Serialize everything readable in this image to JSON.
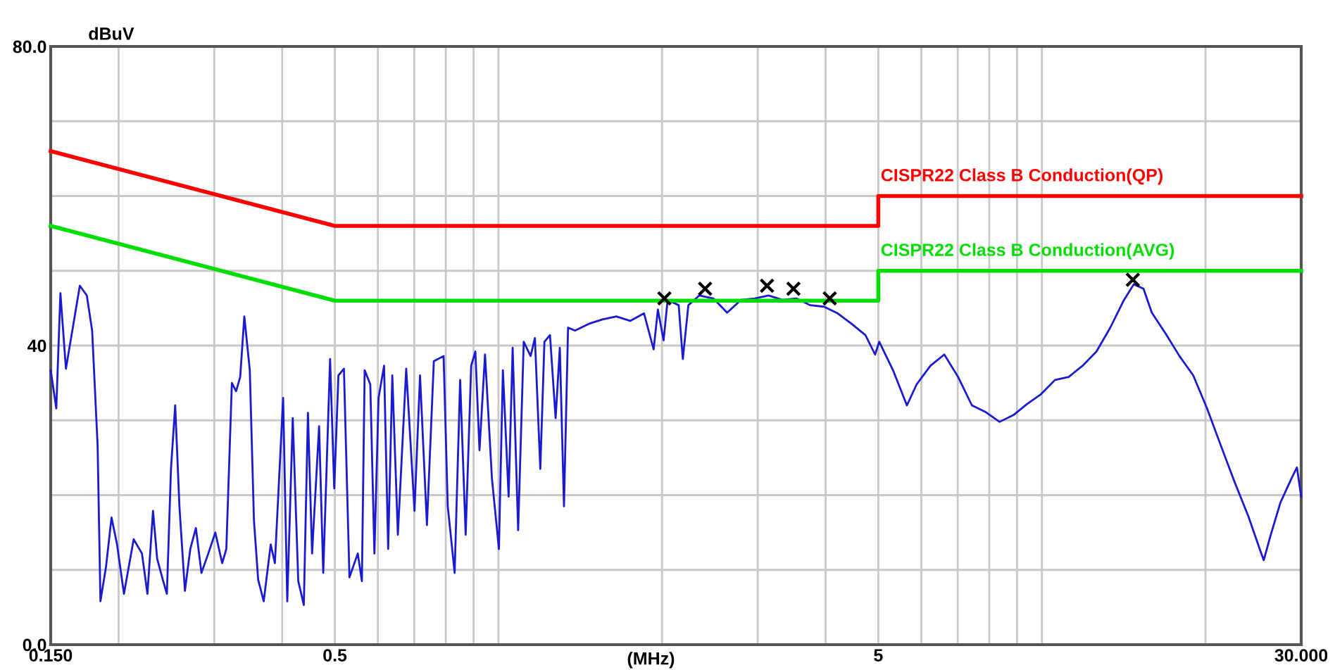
{
  "chart_data": {
    "type": "line",
    "xlabel": "(MHz)",
    "ylabel": "dBuV",
    "log": "x",
    "grid": true,
    "xlim": [
      0.15,
      30
    ],
    "ylim": [
      0,
      80
    ],
    "xticks": [
      {
        "value": 0.15,
        "label": "0.150"
      },
      {
        "value": 0.2,
        "label": null
      },
      {
        "value": 0.3,
        "label": null
      },
      {
        "value": 0.4,
        "label": null
      },
      0.5,
      {
        "value": 0.6,
        "label": null
      },
      {
        "value": 0.7,
        "label": null
      },
      {
        "value": 0.8,
        "label": null
      },
      {
        "value": 0.9,
        "label": null
      },
      {
        "value": 1,
        "label": null
      },
      {
        "value": 2,
        "label": null
      },
      {
        "value": 3,
        "label": null
      },
      {
        "value": 4,
        "label": null
      },
      5,
      {
        "value": 6,
        "label": null
      },
      {
        "value": 7,
        "label": null
      },
      {
        "value": 8,
        "label": null
      },
      {
        "value": 9,
        "label": null
      },
      {
        "value": 10,
        "label": null
      },
      {
        "value": 20,
        "label": null
      },
      {
        "value": 30,
        "label": "30.000"
      }
    ],
    "yticks": [
      {
        "value": 0,
        "label": "0.0"
      },
      {
        "value": 10,
        "label": null
      },
      {
        "value": 20,
        "label": null
      },
      {
        "value": 30,
        "label": null
      },
      40,
      {
        "value": 50,
        "label": null
      },
      {
        "value": 60,
        "label": null
      },
      {
        "value": 70,
        "label": null
      },
      {
        "value": 80,
        "label": "80.0"
      }
    ],
    "series": [
      {
        "color": "#1a1ad0",
        "x": [
          0.15,
          0.1536,
          0.1563,
          0.16,
          0.1697,
          0.1748,
          0.1788,
          0.183,
          0.1852,
          0.1896,
          0.1941,
          0.1987,
          0.2046,
          0.2132,
          0.2208,
          0.226,
          0.2314,
          0.2355,
          0.2412,
          0.2454,
          0.2497,
          0.2542,
          0.2588,
          0.2649,
          0.271,
          0.2775,
          0.2841,
          0.2925,
          0.3013,
          0.3102,
          0.3157,
          0.3232,
          0.329,
          0.3348,
          0.3407,
          0.3487,
          0.3549,
          0.3613,
          0.3699,
          0.381,
          0.3878,
          0.3945,
          0.4016,
          0.4087,
          0.4183,
          0.4282,
          0.4384,
          0.4461,
          0.454,
          0.4677,
          0.476,
          0.49,
          0.4987,
          0.5076,
          0.5196,
          0.5319,
          0.551,
          0.5607,
          0.5673,
          0.581,
          0.5912,
          0.6017,
          0.6159,
          0.6267,
          0.6378,
          0.653,
          0.6765,
          0.7007,
          0.7173,
          0.7386,
          0.7605,
          0.7926,
          0.8067,
          0.8306,
          0.8502,
          0.8703,
          0.8909,
          0.9068,
          0.9228,
          0.9447,
          0.9728,
          1.002,
          1.019,
          1.044,
          1.062,
          1.087,
          1.113,
          1.146,
          1.167,
          1.194,
          1.215,
          1.244,
          1.274,
          1.297,
          1.32,
          1.343,
          1.383,
          1.466,
          1.554,
          1.648,
          1.747,
          1.853,
          1.93,
          1.965,
          2.013,
          2.048,
          2.146,
          2.184,
          2.236,
          2.343,
          2.485,
          2.635,
          2.794,
          2.962,
          3.141,
          3.331,
          3.532,
          3.745,
          3.971,
          4.211,
          4.465,
          4.734,
          4.932,
          5.02,
          5.322,
          5.644,
          5.881,
          6.236,
          6.613,
          7.011,
          7.434,
          7.882,
          8.358,
          8.862,
          9.397,
          9.964,
          10.57,
          11.2,
          11.88,
          12.6,
          13.36,
          14.16,
          14.76,
          15.38,
          15.93,
          16.89,
          17.91,
          18.99,
          20.13,
          21.35,
          22.64,
          24.0,
          25.16,
          25.6,
          26.37,
          27.47,
          28.78,
          29.46,
          30.0
        ],
        "values": [
          36.7,
          31.6,
          47,
          36.9,
          48,
          46.7,
          42,
          26.6,
          5.8,
          10.4,
          17,
          13.4,
          6.8,
          14.1,
          12.2,
          6.8,
          17.9,
          11.5,
          8.7,
          6.8,
          23.5,
          32,
          18.5,
          7.2,
          12.8,
          15.6,
          9.6,
          12.2,
          15,
          10.9,
          12.8,
          35,
          33.9,
          35.8,
          43.9,
          36.7,
          16.6,
          8.7,
          5.8,
          13.4,
          10.9,
          21.7,
          33,
          5.8,
          30.3,
          8.5,
          5.3,
          31,
          12.2,
          29.2,
          9.6,
          38.2,
          20.9,
          36,
          36.9,
          9,
          12.2,
          8.5,
          36.7,
          34.8,
          12.2,
          33,
          37.3,
          12.8,
          36,
          14.7,
          36.9,
          17.9,
          36,
          16,
          37.9,
          38.6,
          18.5,
          9.6,
          35.4,
          14.7,
          37.3,
          39.2,
          26,
          38.8,
          22.2,
          12.8,
          36.7,
          19.8,
          39.7,
          15.3,
          40.5,
          38.6,
          41,
          23.5,
          40.5,
          41.4,
          30.3,
          39.7,
          18.5,
          42.4,
          42,
          42.9,
          43.5,
          43.9,
          43.3,
          44.3,
          39.5,
          44.8,
          40.7,
          46.1,
          45.4,
          38.2,
          45.4,
          46.7,
          46.3,
          44.4,
          46.1,
          46.3,
          46.7,
          46.1,
          46.3,
          45.4,
          45.2,
          44.3,
          42.9,
          41.4,
          38.8,
          40.5,
          36.7,
          32,
          34.8,
          37.3,
          38.8,
          35.8,
          32,
          31.1,
          29.8,
          30.7,
          32.2,
          33.5,
          35.4,
          35.8,
          37.3,
          39.2,
          42.4,
          46.1,
          48.2,
          47.6,
          44.4,
          41.6,
          38.6,
          36,
          31.6,
          26.6,
          21.7,
          17.1,
          12.8,
          11.3,
          14.7,
          19,
          22.2,
          23.7,
          19.8
        ]
      },
      {
        "name": "CISPR22 Class B Conduction(QP)",
        "color": "#ff0000",
        "x": [
          0.15,
          0.5,
          5,
          5,
          30
        ],
        "values": [
          66,
          56,
          56,
          60,
          60
        ]
      },
      {
        "name": "CISPR22 Class B Conduction(AVG)",
        "color": "#00dd00",
        "x": [
          0.15,
          0.5,
          5,
          5,
          30
        ],
        "values": [
          56,
          46,
          46,
          50,
          50
        ]
      },
      {
        "type": "scatter",
        "marker": "cross",
        "color": "#000000",
        "x": [
          2.02,
          2.4,
          3.12,
          3.49,
          4.07,
          14.7
        ],
        "values": [
          46.3,
          47.6,
          48.0,
          47.6,
          46.3,
          48.8
        ]
      }
    ]
  }
}
